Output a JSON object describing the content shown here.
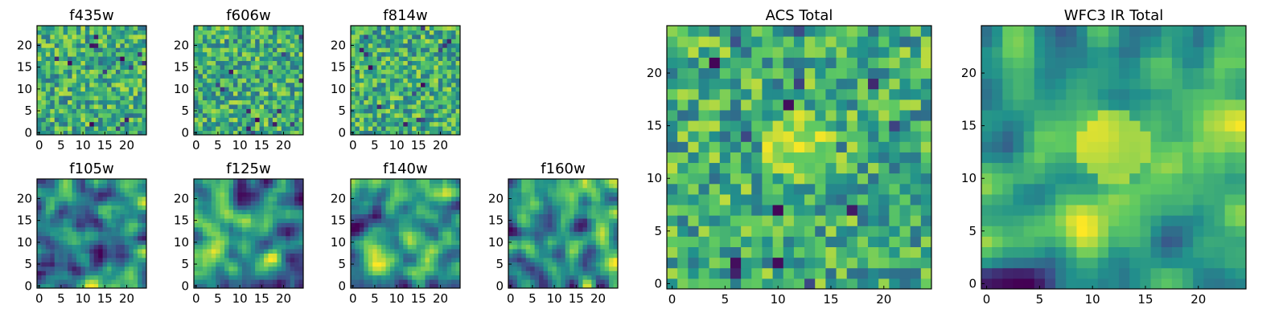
{
  "chart_data": [
    {
      "type": "heatmap",
      "title": "f435w",
      "pattern": "speckle",
      "seed": 11,
      "xlim": [
        0,
        24
      ],
      "ylim": [
        0,
        24
      ],
      "xticks": [
        "0",
        "5",
        "10",
        "15",
        "20"
      ],
      "yticks": [
        "0",
        "5",
        "10",
        "15",
        "20"
      ]
    },
    {
      "type": "heatmap",
      "title": "f606w",
      "pattern": "speckle",
      "seed": 23,
      "xlim": [
        0,
        24
      ],
      "ylim": [
        0,
        24
      ],
      "xticks": [
        "0",
        "5",
        "10",
        "15",
        "20"
      ],
      "yticks": [
        "0",
        "5",
        "10",
        "15",
        "20"
      ]
    },
    {
      "type": "heatmap",
      "title": "f814w",
      "pattern": "speckle",
      "seed": 37,
      "xlim": [
        0,
        24
      ],
      "ylim": [
        0,
        24
      ],
      "xticks": [
        "0",
        "5",
        "10",
        "15",
        "20"
      ],
      "yticks": [
        "0",
        "5",
        "10",
        "15",
        "20"
      ]
    },
    {
      "type": "heatmap",
      "title": "f105w",
      "pattern": "smooth",
      "seed": 41,
      "xlim": [
        0,
        24
      ],
      "ylim": [
        0,
        24
      ],
      "xticks": [
        "0",
        "5",
        "10",
        "15",
        "20"
      ],
      "yticks": [
        "0",
        "5",
        "10",
        "15",
        "20"
      ]
    },
    {
      "type": "heatmap",
      "title": "f125w",
      "pattern": "smooth",
      "seed": 53,
      "xlim": [
        0,
        24
      ],
      "ylim": [
        0,
        24
      ],
      "xticks": [
        "0",
        "5",
        "10",
        "15",
        "20"
      ],
      "yticks": [
        "0",
        "5",
        "10",
        "15",
        "20"
      ]
    },
    {
      "type": "heatmap",
      "title": "f140w",
      "pattern": "smooth",
      "seed": 67,
      "xlim": [
        0,
        24
      ],
      "ylim": [
        0,
        24
      ],
      "xticks": [
        "0",
        "5",
        "10",
        "15",
        "20"
      ],
      "yticks": [
        "0",
        "5",
        "10",
        "15",
        "20"
      ]
    },
    {
      "type": "heatmap",
      "title": "f160w",
      "pattern": "smooth",
      "seed": 79,
      "xlim": [
        0,
        24
      ],
      "ylim": [
        0,
        24
      ],
      "xticks": [
        "0",
        "5",
        "10",
        "15",
        "20"
      ],
      "yticks": [
        "0",
        "5",
        "10",
        "15",
        "20"
      ]
    },
    {
      "type": "heatmap",
      "title": "ACS Total",
      "pattern": "speckle-center",
      "seed": 83,
      "xlim": [
        0,
        24
      ],
      "ylim": [
        0,
        24
      ],
      "xticks": [
        "0",
        "5",
        "10",
        "15",
        "20"
      ],
      "yticks": [
        "0",
        "5",
        "10",
        "15",
        "20"
      ]
    },
    {
      "type": "heatmap",
      "title": "WFC3 IR Total",
      "pattern": "smooth-center",
      "seed": 97,
      "xlim": [
        0,
        24
      ],
      "ylim": [
        0,
        24
      ],
      "xticks": [
        "0",
        "5",
        "10",
        "15",
        "20"
      ],
      "yticks": [
        "0",
        "5",
        "10",
        "15",
        "20"
      ]
    }
  ],
  "colormap": [
    "#440154",
    "#3b528b",
    "#21918c",
    "#5ec962",
    "#fde725"
  ],
  "grid_size": 25
}
